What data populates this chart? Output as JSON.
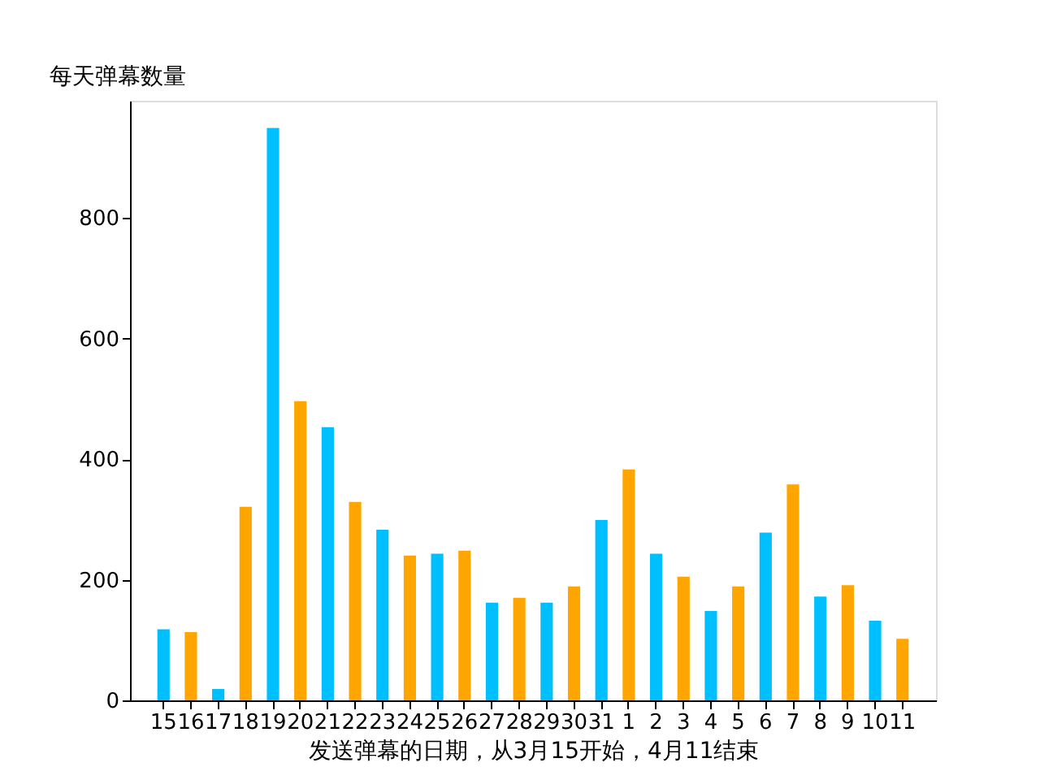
{
  "chart_data": {
    "type": "bar",
    "ylabel": "每天弹幕数量",
    "xlabel": "发送弹幕的日期，从3月15开始，4月11结束",
    "categories": [
      "15",
      "16",
      "17",
      "18",
      "19",
      "20",
      "21",
      "22",
      "23",
      "24",
      "25",
      "26",
      "27",
      "28",
      "29",
      "30",
      "31",
      "1",
      "2",
      "3",
      "4",
      "5",
      "6",
      "7",
      "8",
      "9",
      "10",
      "11"
    ],
    "values": [
      118,
      113,
      19,
      321,
      949,
      496,
      453,
      329,
      283,
      240,
      243,
      248,
      162,
      170,
      162,
      189,
      299,
      383,
      243,
      205,
      148,
      189,
      278,
      358,
      172,
      191,
      132,
      102
    ],
    "colors": [
      "#00bfff",
      "#ffa500",
      "#00bfff",
      "#ffa500",
      "#00bfff",
      "#ffa500",
      "#00bfff",
      "#ffa500",
      "#00bfff",
      "#ffa500",
      "#00bfff",
      "#ffa500",
      "#00bfff",
      "#ffa500",
      "#00bfff",
      "#ffa500",
      "#00bfff",
      "#ffa500",
      "#00bfff",
      "#ffa500",
      "#00bfff",
      "#ffa500",
      "#00bfff",
      "#ffa500",
      "#00bfff",
      "#ffa500",
      "#00bfff",
      "#ffa500"
    ],
    "ylim": [
      0,
      994
    ],
    "yticks": [
      0,
      200,
      400,
      600,
      800
    ],
    "grid": false
  }
}
